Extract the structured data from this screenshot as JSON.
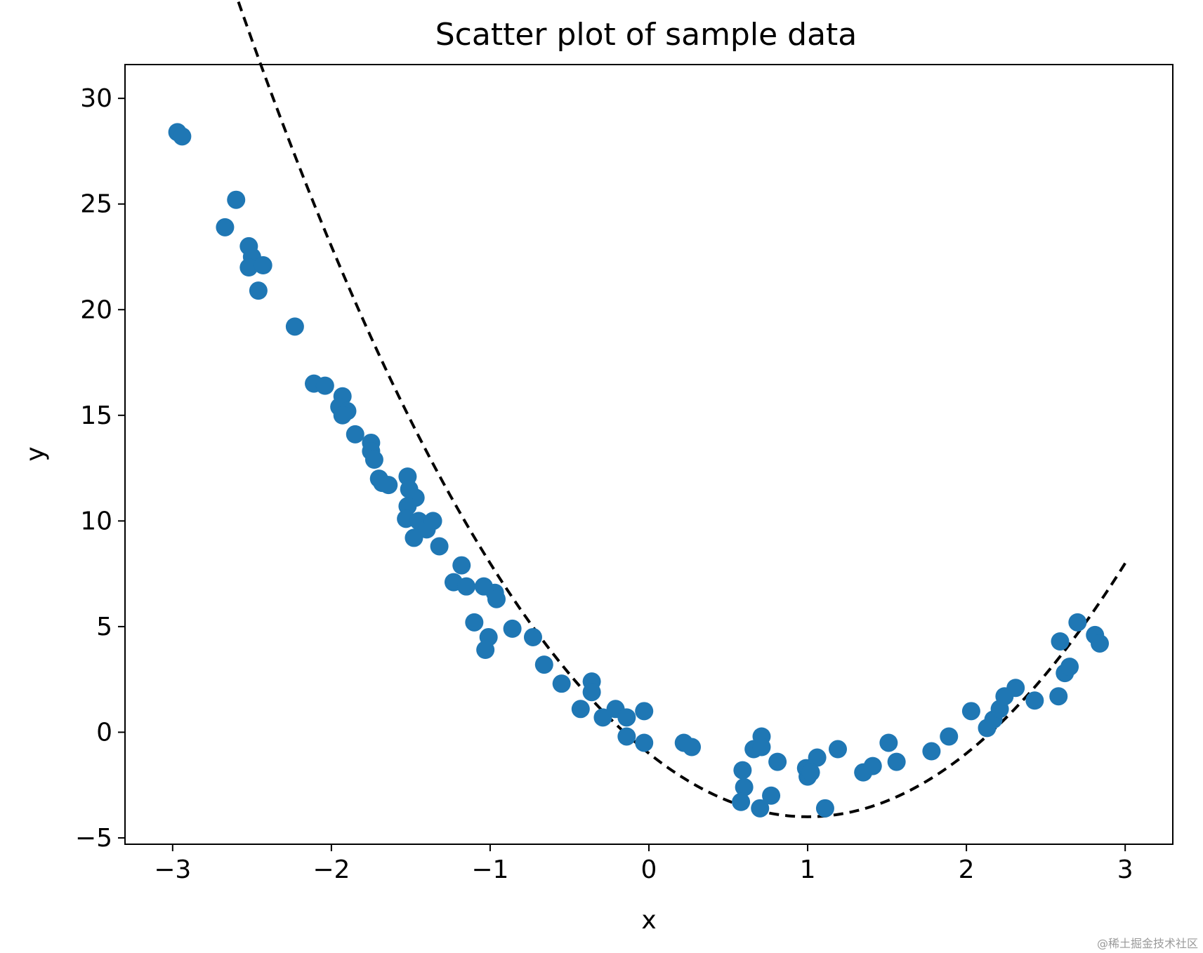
{
  "chart_data": {
    "type": "scatter",
    "title": "Scatter plot of sample data",
    "xlabel": "x",
    "ylabel": "y",
    "xlim": [
      -3.3,
      3.3
    ],
    "ylim": [
      -5.3,
      31.6
    ],
    "xticks": [
      -3,
      -2,
      -1,
      0,
      1,
      2,
      3
    ],
    "xtick_labels": [
      "−3",
      "−2",
      "−1",
      "0",
      "1",
      "2",
      "3"
    ],
    "yticks": [
      -5,
      0,
      5,
      10,
      15,
      20,
      25,
      30
    ],
    "ytick_labels": [
      "−5",
      "0",
      "5",
      "10",
      "15",
      "20",
      "25",
      "30"
    ],
    "grid": false,
    "legend": "none",
    "series": [
      {
        "kind": "points",
        "color": "#1f77b4",
        "points": [
          [
            -2.97,
            28.4
          ],
          [
            -2.94,
            28.2
          ],
          [
            -2.6,
            25.2
          ],
          [
            -2.67,
            23.9
          ],
          [
            -2.52,
            23.0
          ],
          [
            -2.5,
            22.5
          ],
          [
            -2.52,
            22.0
          ],
          [
            -2.43,
            22.1
          ],
          [
            -2.46,
            20.9
          ],
          [
            -2.23,
            19.2
          ],
          [
            -2.11,
            16.5
          ],
          [
            -2.04,
            16.4
          ],
          [
            -1.93,
            15.9
          ],
          [
            -1.95,
            15.4
          ],
          [
            -1.9,
            15.2
          ],
          [
            -1.93,
            15.0
          ],
          [
            -1.85,
            14.1
          ],
          [
            -1.75,
            13.7
          ],
          [
            -1.75,
            13.3
          ],
          [
            -1.73,
            12.9
          ],
          [
            -1.7,
            12.0
          ],
          [
            -1.68,
            11.8
          ],
          [
            -1.64,
            11.7
          ],
          [
            -1.52,
            12.1
          ],
          [
            -1.51,
            11.5
          ],
          [
            -1.47,
            11.1
          ],
          [
            -1.52,
            10.7
          ],
          [
            -1.53,
            10.1
          ],
          [
            -1.45,
            10.0
          ],
          [
            -1.4,
            9.6
          ],
          [
            -1.36,
            10.0
          ],
          [
            -1.48,
            9.2
          ],
          [
            -1.32,
            8.8
          ],
          [
            -1.18,
            7.9
          ],
          [
            -1.23,
            7.1
          ],
          [
            -1.15,
            6.9
          ],
          [
            -1.04,
            6.9
          ],
          [
            -0.97,
            6.6
          ],
          [
            -0.96,
            6.3
          ],
          [
            -1.1,
            5.2
          ],
          [
            -0.86,
            4.9
          ],
          [
            -0.73,
            4.5
          ],
          [
            -1.01,
            4.5
          ],
          [
            -1.03,
            3.9
          ],
          [
            -0.66,
            3.2
          ],
          [
            -0.55,
            2.3
          ],
          [
            -0.36,
            2.4
          ],
          [
            -0.36,
            1.9
          ],
          [
            -0.43,
            1.1
          ],
          [
            -0.21,
            1.1
          ],
          [
            -0.29,
            0.7
          ],
          [
            -0.14,
            0.7
          ],
          [
            -0.03,
            1.0
          ],
          [
            -0.14,
            -0.2
          ],
          [
            -0.03,
            -0.5
          ],
          [
            0.22,
            -0.5
          ],
          [
            0.27,
            -0.7
          ],
          [
            0.71,
            -0.2
          ],
          [
            0.66,
            -0.8
          ],
          [
            0.71,
            -0.7
          ],
          [
            0.59,
            -1.8
          ],
          [
            0.81,
            -1.4
          ],
          [
            0.6,
            -2.6
          ],
          [
            0.58,
            -3.3
          ],
          [
            0.7,
            -3.6
          ],
          [
            0.77,
            -3.0
          ],
          [
            0.99,
            -1.7
          ],
          [
            1.06,
            -1.2
          ],
          [
            1.19,
            -0.8
          ],
          [
            1.0,
            -2.1
          ],
          [
            1.02,
            -1.9
          ],
          [
            1.11,
            -3.6
          ],
          [
            1.35,
            -1.9
          ],
          [
            1.41,
            -1.6
          ],
          [
            1.51,
            -0.5
          ],
          [
            1.56,
            -1.4
          ],
          [
            1.78,
            -0.9
          ],
          [
            1.89,
            -0.2
          ],
          [
            2.03,
            1.0
          ],
          [
            2.13,
            0.2
          ],
          [
            2.17,
            0.6
          ],
          [
            2.21,
            1.1
          ],
          [
            2.24,
            1.7
          ],
          [
            2.31,
            2.1
          ],
          [
            2.43,
            1.5
          ],
          [
            2.58,
            1.7
          ],
          [
            2.59,
            4.3
          ],
          [
            2.62,
            2.8
          ],
          [
            2.65,
            3.1
          ],
          [
            2.7,
            5.2
          ],
          [
            2.81,
            4.6
          ],
          [
            2.84,
            4.2
          ]
        ]
      },
      {
        "kind": "curve",
        "color": "#000000",
        "style": "dashed",
        "equation": "y = 3x^2 - 6x - 1",
        "coefficients": [
          3,
          -6,
          -1
        ],
        "x_range": [
          -3,
          3
        ]
      }
    ]
  },
  "watermark": "@稀土掘金技术社区"
}
